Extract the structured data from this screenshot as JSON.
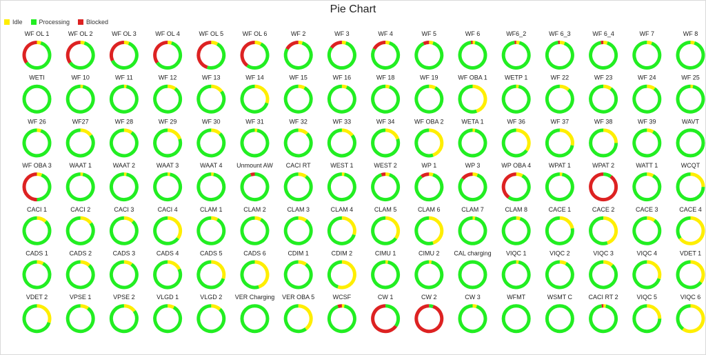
{
  "chart_data": {
    "type": "pie",
    "title": "Pie Chart",
    "legend": {
      "placement": "top-left",
      "entries": [
        {
          "name": "Idle",
          "color": "#ffee00"
        },
        {
          "name": "Processing",
          "color": "#22ee22"
        },
        {
          "name": "Blocked",
          "color": "#dd2222"
        }
      ]
    },
    "series_order": [
      "Idle",
      "Processing",
      "Blocked"
    ],
    "charts": [
      {
        "label": "WF OL 1",
        "values": [
          5,
          60,
          35
        ]
      },
      {
        "label": "WF OL 2",
        "values": [
          5,
          60,
          35
        ]
      },
      {
        "label": "WF OL 3",
        "values": [
          6,
          62,
          32
        ]
      },
      {
        "label": "WF OL 4",
        "values": [
          5,
          60,
          35
        ]
      },
      {
        "label": "WF OL 5",
        "values": [
          8,
          47,
          45
        ]
      },
      {
        "label": "WF OL 6",
        "values": [
          8,
          52,
          40
        ]
      },
      {
        "label": "WF 2",
        "values": [
          5,
          78,
          17
        ]
      },
      {
        "label": "WF 3",
        "values": [
          5,
          80,
          15
        ]
      },
      {
        "label": "WF 4",
        "values": [
          5,
          78,
          17
        ]
      },
      {
        "label": "WF 5",
        "values": [
          5,
          88,
          7
        ]
      },
      {
        "label": "WF 6",
        "values": [
          3,
          95,
          2
        ]
      },
      {
        "label": "WF6_2",
        "values": [
          4,
          94,
          2
        ]
      },
      {
        "label": "WF 6_3",
        "values": [
          6,
          92,
          2
        ]
      },
      {
        "label": "WF 6_4",
        "values": [
          5,
          92,
          3
        ]
      },
      {
        "label": "WF 7",
        "values": [
          6,
          94,
          0
        ]
      },
      {
        "label": "WF 8",
        "values": [
          5,
          95,
          0
        ]
      },
      {
        "label": "WETI",
        "values": [
          0,
          100,
          0
        ]
      },
      {
        "label": "WF 10",
        "values": [
          3,
          97,
          0
        ]
      },
      {
        "label": "WF 11",
        "values": [
          3,
          97,
          0
        ]
      },
      {
        "label": "WF 12",
        "values": [
          10,
          90,
          0
        ]
      },
      {
        "label": "WF 13",
        "values": [
          15,
          85,
          0
        ]
      },
      {
        "label": "WF 14",
        "values": [
          30,
          70,
          0
        ]
      },
      {
        "label": "WF 15",
        "values": [
          8,
          92,
          0
        ]
      },
      {
        "label": "WF 16",
        "values": [
          6,
          94,
          0
        ]
      },
      {
        "label": "WF 18",
        "values": [
          5,
          95,
          0
        ]
      },
      {
        "label": "WF 19",
        "values": [
          8,
          92,
          0
        ]
      },
      {
        "label": "WF OBA 1",
        "values": [
          45,
          55,
          0
        ]
      },
      {
        "label": "WETP 1",
        "values": [
          3,
          97,
          0
        ]
      },
      {
        "label": "WF 22",
        "values": [
          12,
          88,
          0
        ]
      },
      {
        "label": "WF 23",
        "values": [
          10,
          90,
          0
        ]
      },
      {
        "label": "WF 24",
        "values": [
          10,
          90,
          0
        ]
      },
      {
        "label": "WF 25",
        "values": [
          3,
          97,
          0
        ]
      },
      {
        "label": "WF 26",
        "values": [
          5,
          95,
          0
        ]
      },
      {
        "label": "WF27",
        "values": [
          15,
          85,
          0
        ]
      },
      {
        "label": "WF 28",
        "values": [
          10,
          90,
          0
        ]
      },
      {
        "label": "WF 29",
        "values": [
          20,
          80,
          0
        ]
      },
      {
        "label": "WF 30",
        "values": [
          12,
          88,
          0
        ]
      },
      {
        "label": "WF 31",
        "values": [
          3,
          97,
          0
        ]
      },
      {
        "label": "WF 32",
        "values": [
          12,
          88,
          0
        ]
      },
      {
        "label": "WF 33",
        "values": [
          15,
          85,
          0
        ]
      },
      {
        "label": "WF 34",
        "values": [
          20,
          80,
          0
        ]
      },
      {
        "label": "WF OBA 2",
        "values": [
          45,
          55,
          0
        ]
      },
      {
        "label": "WETA 1",
        "values": [
          3,
          97,
          0
        ]
      },
      {
        "label": "WF 36",
        "values": [
          35,
          65,
          0
        ]
      },
      {
        "label": "WF 37",
        "values": [
          28,
          72,
          0
        ]
      },
      {
        "label": "WF 38",
        "values": [
          25,
          75,
          0
        ]
      },
      {
        "label": "WF 39",
        "values": [
          8,
          92,
          0
        ]
      },
      {
        "label": "WAVT",
        "values": [
          0,
          100,
          0
        ]
      },
      {
        "label": "WF OBA 3",
        "values": [
          6,
          44,
          50
        ]
      },
      {
        "label": "WAAT 1",
        "values": [
          3,
          97,
          0
        ]
      },
      {
        "label": "WAAT 2",
        "values": [
          3,
          97,
          0
        ]
      },
      {
        "label": "WAAT 3",
        "values": [
          3,
          97,
          0
        ]
      },
      {
        "label": "WAAT 4",
        "values": [
          3,
          97,
          0
        ]
      },
      {
        "label": "Unmount AW",
        "values": [
          0,
          95,
          5
        ]
      },
      {
        "label": "CACI RT",
        "values": [
          10,
          90,
          0
        ]
      },
      {
        "label": "WEST 1",
        "values": [
          3,
          97,
          0
        ]
      },
      {
        "label": "WEST 2",
        "values": [
          5,
          90,
          5
        ]
      },
      {
        "label": "WP 1",
        "values": [
          5,
          85,
          10
        ]
      },
      {
        "label": "WP 3",
        "values": [
          6,
          80,
          14
        ]
      },
      {
        "label": "WP OBA 4",
        "values": [
          8,
          52,
          40
        ]
      },
      {
        "label": "WPAT 1",
        "values": [
          3,
          97,
          0
        ]
      },
      {
        "label": "WPAT 2",
        "values": [
          0,
          10,
          90
        ]
      },
      {
        "label": "WATT 1",
        "values": [
          8,
          92,
          0
        ]
      },
      {
        "label": "WCQT",
        "values": [
          25,
          75,
          0
        ]
      },
      {
        "label": "CACI 1",
        "values": [
          12,
          88,
          0
        ]
      },
      {
        "label": "CACI 2",
        "values": [
          15,
          85,
          0
        ]
      },
      {
        "label": "CACI 3",
        "values": [
          12,
          88,
          0
        ]
      },
      {
        "label": "CACI 4",
        "values": [
          35,
          65,
          0
        ]
      },
      {
        "label": "CLAM 1",
        "values": [
          8,
          92,
          0
        ]
      },
      {
        "label": "CLAM 2",
        "values": [
          8,
          92,
          0
        ]
      },
      {
        "label": "CLAM 3",
        "values": [
          10,
          90,
          0
        ]
      },
      {
        "label": "CLAM 4",
        "values": [
          30,
          70,
          0
        ]
      },
      {
        "label": "CLAM 5",
        "values": [
          35,
          65,
          0
        ]
      },
      {
        "label": "CLAM 6",
        "values": [
          45,
          55,
          0
        ]
      },
      {
        "label": "CLAM 7",
        "values": [
          3,
          97,
          0
        ]
      },
      {
        "label": "CLAM 8",
        "values": [
          5,
          95,
          0
        ]
      },
      {
        "label": "CACE 1",
        "values": [
          22,
          78,
          0
        ]
      },
      {
        "label": "CACE 2",
        "values": [
          45,
          55,
          0
        ]
      },
      {
        "label": "CACE 3",
        "values": [
          10,
          90,
          0
        ]
      },
      {
        "label": "CACE 4",
        "values": [
          65,
          35,
          0
        ]
      },
      {
        "label": "CADS 1",
        "values": [
          8,
          92,
          0
        ]
      },
      {
        "label": "CADS 2",
        "values": [
          12,
          88,
          0
        ]
      },
      {
        "label": "CADS 3",
        "values": [
          10,
          90,
          0
        ]
      },
      {
        "label": "CADS 4",
        "values": [
          18,
          82,
          0
        ]
      },
      {
        "label": "CADS 5",
        "values": [
          30,
          70,
          0
        ]
      },
      {
        "label": "CADS 6",
        "values": [
          45,
          55,
          0
        ]
      },
      {
        "label": "CDIM 1",
        "values": [
          10,
          90,
          0
        ]
      },
      {
        "label": "CDIM 2",
        "values": [
          55,
          45,
          0
        ]
      },
      {
        "label": "CIMU 1",
        "values": [
          3,
          97,
          0
        ]
      },
      {
        "label": "CIMU 2",
        "values": [
          3,
          97,
          0
        ]
      },
      {
        "label": "CAL charging",
        "values": [
          0,
          100,
          0
        ]
      },
      {
        "label": "VIQC 1",
        "values": [
          3,
          97,
          0
        ]
      },
      {
        "label": "VIQC 2",
        "values": [
          8,
          92,
          0
        ]
      },
      {
        "label": "VIQC 3",
        "values": [
          12,
          88,
          0
        ]
      },
      {
        "label": "VIQC 4",
        "values": [
          30,
          70,
          0
        ]
      },
      {
        "label": "VDET 1",
        "values": [
          35,
          65,
          0
        ]
      },
      {
        "label": "VDET 2",
        "values": [
          30,
          70,
          0
        ]
      },
      {
        "label": "VPSE 1",
        "values": [
          10,
          90,
          0
        ]
      },
      {
        "label": "VPSE 2",
        "values": [
          15,
          85,
          0
        ]
      },
      {
        "label": "VLGD 1",
        "values": [
          8,
          92,
          0
        ]
      },
      {
        "label": "VLGD 2",
        "values": [
          12,
          88,
          0
        ]
      },
      {
        "label": "VER Charging",
        "values": [
          0,
          100,
          0
        ]
      },
      {
        "label": "VER OBA 5",
        "values": [
          40,
          60,
          0
        ]
      },
      {
        "label": "WCSF",
        "values": [
          3,
          92,
          5
        ]
      },
      {
        "label": "CW 1",
        "values": [
          0,
          35,
          65
        ]
      },
      {
        "label": "CW 2",
        "values": [
          0,
          5,
          95
        ]
      },
      {
        "label": "CW 3",
        "values": [
          5,
          95,
          0
        ]
      },
      {
        "label": "WFMT",
        "values": [
          0,
          100,
          0
        ]
      },
      {
        "label": "WSMT C",
        "values": [
          0,
          100,
          0
        ]
      },
      {
        "label": "CACI RT 2",
        "values": [
          3,
          95,
          2
        ]
      },
      {
        "label": "VIQC 5",
        "values": [
          25,
          75,
          0
        ]
      },
      {
        "label": "VIQC 6",
        "values": [
          60,
          40,
          0
        ]
      }
    ]
  }
}
